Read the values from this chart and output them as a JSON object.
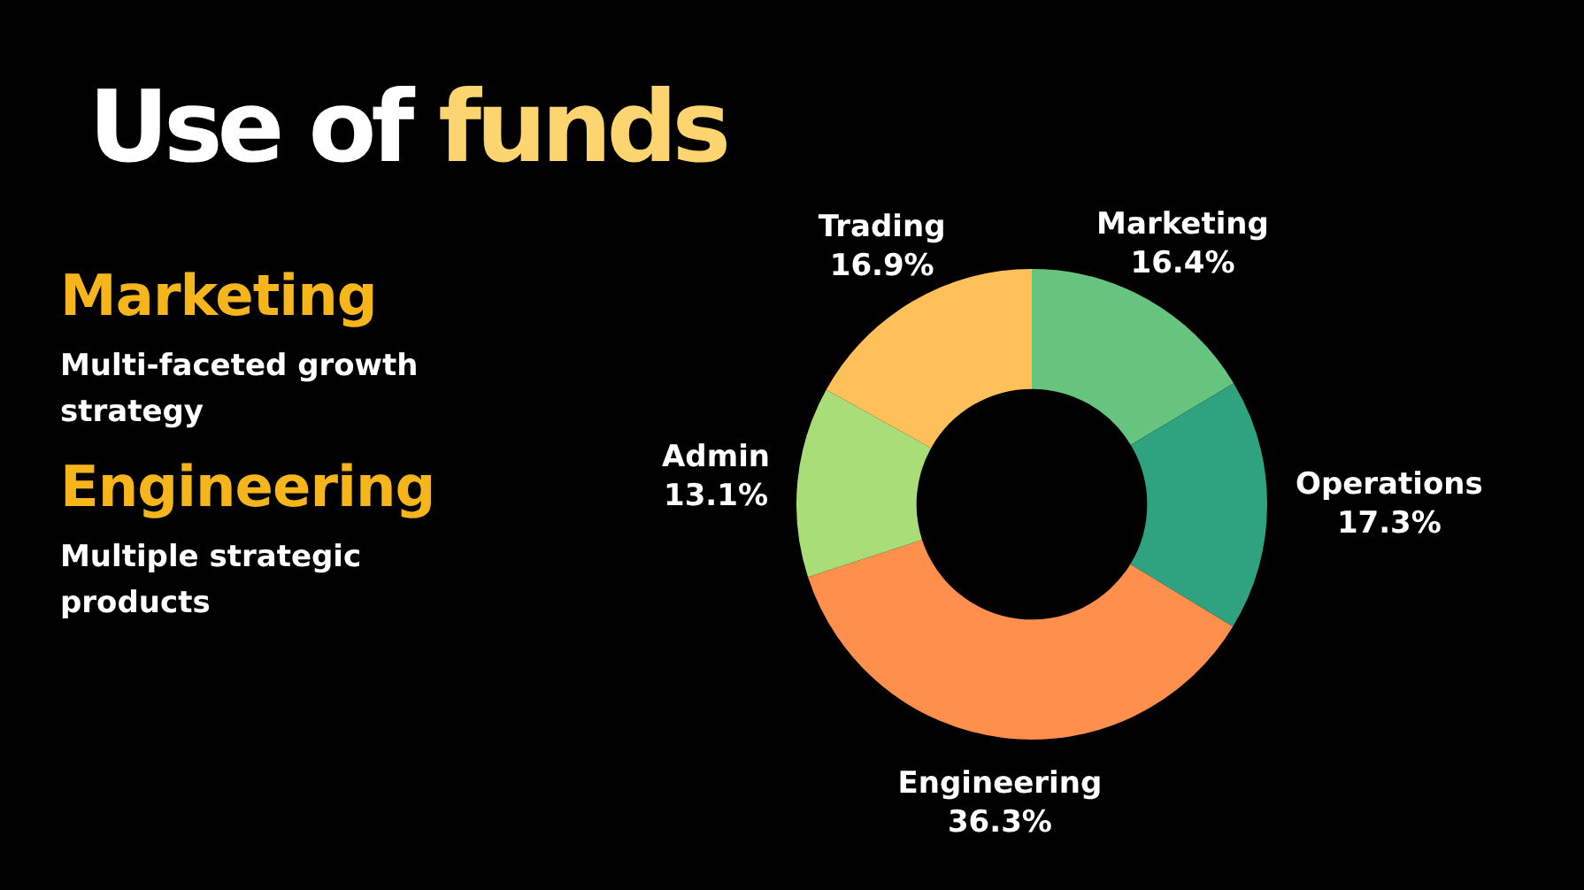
{
  "chart_data": {
    "type": "donut",
    "title": "Use of funds",
    "categories": [
      "Marketing",
      "Operations",
      "Engineering",
      "Admin",
      "Trading"
    ],
    "values": [
      16.4,
      17.3,
      36.3,
      13.1,
      16.9
    ],
    "colors": [
      "#66c47e",
      "#2fa37f",
      "#ff8f4c",
      "#a8dd78",
      "#ffc05a"
    ],
    "value_labels": [
      "16.4%",
      "17.3%",
      "36.3%",
      "13.1%",
      "16.9%"
    ],
    "annotations": [
      "Marketing",
      "Multi-faceted growth strategy",
      "Engineering",
      "Multiple strategic products"
    ]
  }
}
